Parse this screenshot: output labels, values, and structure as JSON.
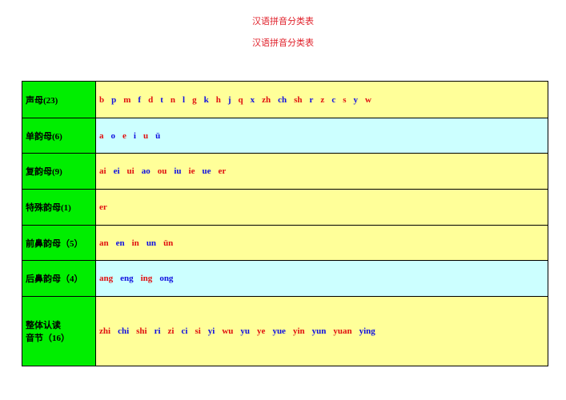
{
  "header": {
    "title": "汉语拼音分类表",
    "subtitle": "汉语拼音分类表"
  },
  "table": {
    "rows": [
      {
        "label": "声母(23)",
        "items": [
          "b",
          "p",
          "m",
          "f",
          "d",
          "t",
          "n",
          "l",
          "g",
          "k",
          "h",
          "j",
          "q",
          "x",
          "zh",
          "ch",
          "sh",
          "r",
          "z",
          "c",
          "s",
          "y",
          "w"
        ]
      },
      {
        "label": "单韵母(6)",
        "items": [
          "a",
          "o",
          "e",
          "i",
          "u",
          "ü"
        ]
      },
      {
        "label": "复韵母(9)",
        "items": [
          "ai",
          "ei",
          "ui",
          "ao",
          "ou",
          "iu",
          "ie",
          "ue",
          "er"
        ]
      },
      {
        "label": "特殊韵母(1)",
        "items": [
          "er"
        ]
      },
      {
        "label": "前鼻韵母（5）",
        "items": [
          "an",
          "en",
          "in",
          "un",
          "ün"
        ]
      },
      {
        "label": "后鼻韵母（4）",
        "items": [
          "ang",
          "eng",
          "ing",
          "ong"
        ]
      },
      {
        "label": "整体认读\n音节（16）",
        "items": [
          "zhi",
          "chi",
          "shi",
          "ri",
          "zi",
          "ci",
          "si",
          "yi",
          "wu",
          "yu",
          "ye",
          "yue",
          "yin",
          "yun",
          "yuan",
          "ying"
        ]
      }
    ]
  }
}
